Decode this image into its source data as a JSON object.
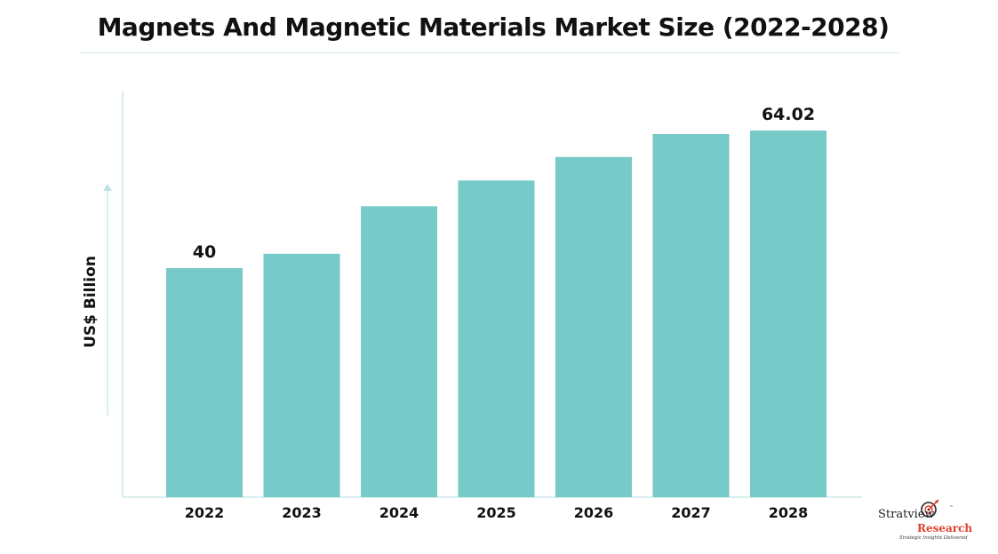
{
  "title": "Magnets And Magnetic Materials Market Size (2022-2028)",
  "logo": {
    "name_part1": "Stratview",
    "name_part2": "Research",
    "trademark": "™",
    "tagline": "Strategic Insights Delivered"
  },
  "colors": {
    "bar": "#76cac7",
    "axis": "#bfe3e1",
    "text": "#111111",
    "logo_accent": "#e0402b"
  },
  "chart_data": {
    "type": "bar",
    "title": "Magnets And Magnetic Materials Market Size (2022-2028)",
    "xlabel": "",
    "ylabel": "US$ Billion",
    "categories": [
      "2022",
      "2023",
      "2024",
      "2025",
      "2026",
      "2027",
      "2028"
    ],
    "values": [
      40,
      42.5,
      50.8,
      55.3,
      59.4,
      63.4,
      64.02
    ],
    "data_labels": [
      "40",
      "",
      "",
      "",
      "",
      "",
      "64.02"
    ],
    "ylim": [
      0,
      70
    ],
    "grid": false,
    "legend": "none"
  }
}
